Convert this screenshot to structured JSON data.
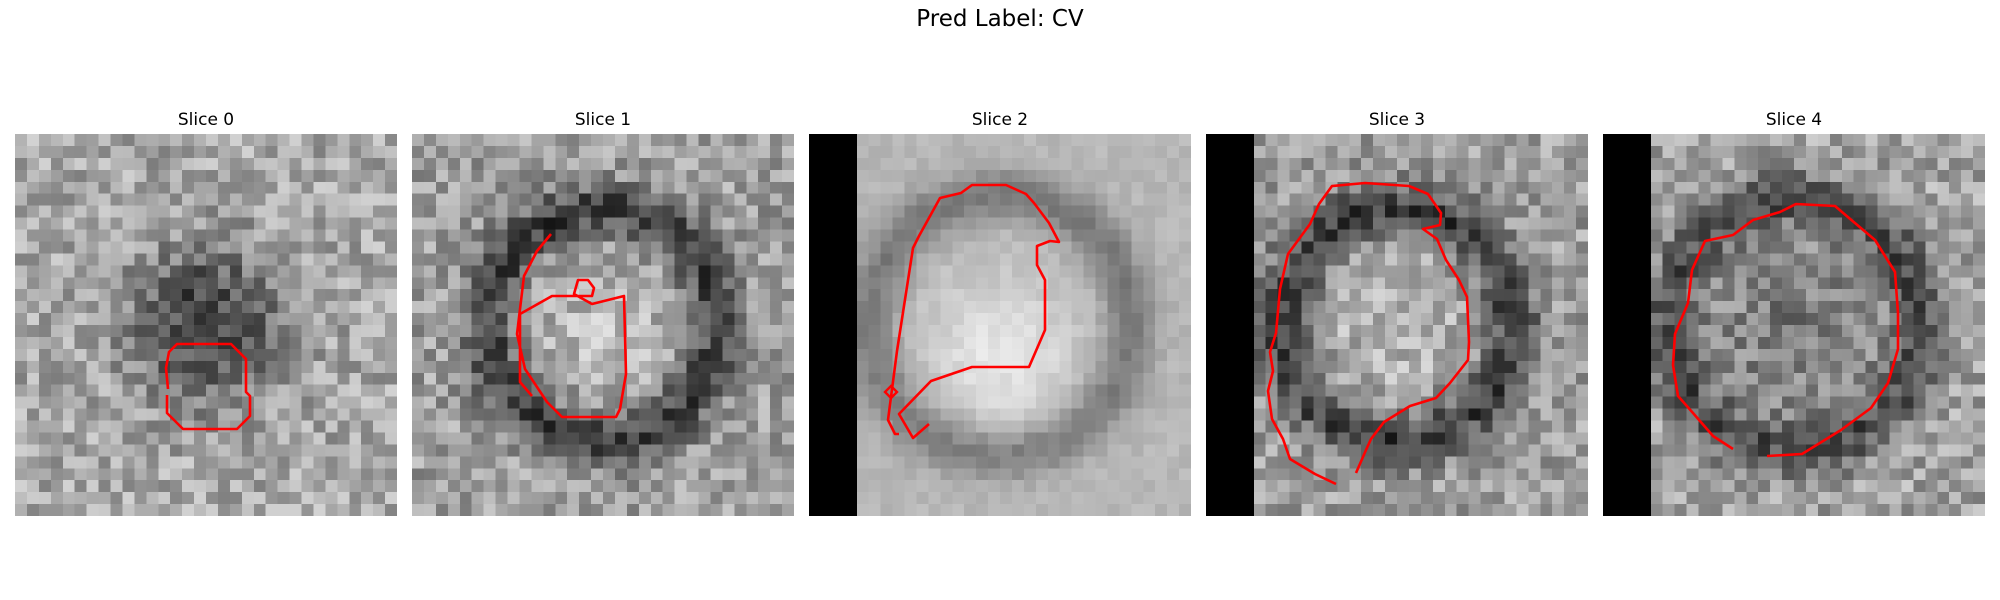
{
  "title": "Pred Label: CV",
  "contour_color": "#ff0000",
  "panels": [
    {
      "title": "Slice 0",
      "black_band": false,
      "pattern": "dark-ring-center"
    },
    {
      "title": "Slice 1",
      "black_band": false,
      "pattern": "bright-center-dark-ring"
    },
    {
      "title": "Slice 2",
      "black_band": true,
      "pattern": "smooth-bright-blob"
    },
    {
      "title": "Slice 3",
      "black_band": true,
      "pattern": "bright-center-dark-ring"
    },
    {
      "title": "Slice 4",
      "black_band": true,
      "pattern": "mid-center-dark-ring"
    }
  ]
}
